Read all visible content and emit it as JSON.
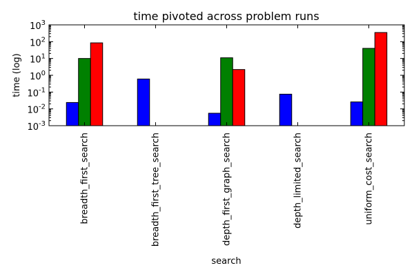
{
  "chart_data": {
    "type": "bar",
    "title": "time pivoted across problem runs",
    "xlabel": "search",
    "ylabel": "time (log)",
    "yscale": "log",
    "ylim": [
      0.001,
      1000
    ],
    "y_ticks": [
      {
        "value": 0.001,
        "base": "10",
        "exp": "-3"
      },
      {
        "value": 0.01,
        "base": "10",
        "exp": "-2"
      },
      {
        "value": 0.1,
        "base": "10",
        "exp": "-1"
      },
      {
        "value": 1,
        "base": "10",
        "exp": "0"
      },
      {
        "value": 10,
        "base": "10",
        "exp": "1"
      },
      {
        "value": 100,
        "base": "10",
        "exp": "2"
      },
      {
        "value": 1000,
        "base": "10",
        "exp": "3"
      }
    ],
    "categories": [
      "breadth_first_search",
      "breadth_first_tree_search",
      "depth_first_graph_search",
      "depth_limited_search",
      "uniform_cost_search"
    ],
    "series": [
      {
        "color": "#0000ff",
        "values": [
          0.024,
          0.6,
          0.0055,
          0.075,
          0.026
        ]
      },
      {
        "color": "#008000",
        "values": [
          10,
          null,
          11,
          null,
          40
        ]
      },
      {
        "color": "#ff0000",
        "values": [
          85,
          null,
          2.2,
          null,
          350
        ]
      }
    ],
    "grid": false,
    "legend": false
  }
}
